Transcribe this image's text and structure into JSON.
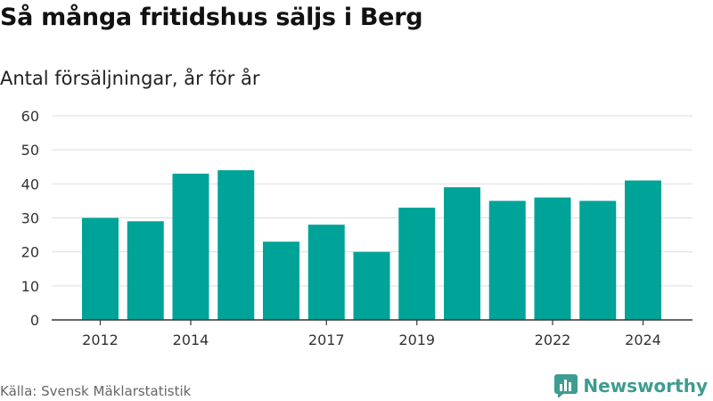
{
  "title": "Så många fritidshus säljs i Berg",
  "subtitle": "Antal försäljningar, år för år",
  "source": "Källa: Svensk Mäklarstatistik",
  "brand": {
    "name": "Newsworthy",
    "logo_icon": "bar-chart-logo-icon"
  },
  "colors": {
    "bar": "#00a398",
    "grid": "#dddddd",
    "axis": "#333333"
  },
  "chart_data": {
    "type": "bar",
    "categories": [
      "2012",
      "2013",
      "2014",
      "2015",
      "2016",
      "2017",
      "2018",
      "2019",
      "2020",
      "2021",
      "2022",
      "2023",
      "2024"
    ],
    "values": [
      30,
      29,
      43,
      44,
      23,
      28,
      20,
      33,
      39,
      35,
      36,
      35,
      41
    ],
    "x_tick_labels": [
      "2012",
      "2014",
      "2017",
      "2019",
      "2022",
      "2024"
    ],
    "y_ticks": [
      0,
      10,
      20,
      30,
      40,
      50,
      60
    ],
    "ylim": [
      0,
      60
    ],
    "grid": true,
    "xlabel": "",
    "ylabel": ""
  }
}
